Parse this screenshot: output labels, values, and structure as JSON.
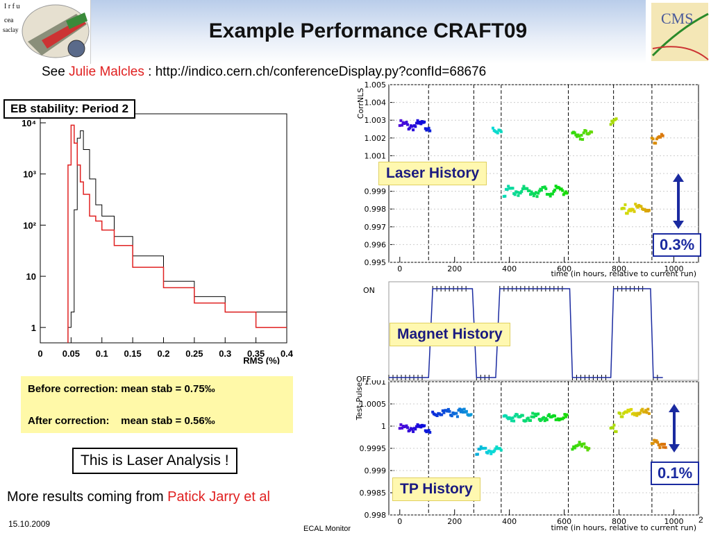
{
  "header": {
    "title": "Example Performance CRAFT09",
    "subtitle_prefix": "See ",
    "subtitle_author": "Julie Malcles",
    "subtitle_suffix": " : http://indico.cern.ch/conferenceDisplay.py?confId=68676"
  },
  "logos": {
    "left": "irfu cea saclay",
    "right": "CMS"
  },
  "left_panel": {
    "label": "EB stability: Period 2",
    "correction_before": "Before correction: mean stab = 0.75‰",
    "correction_after": "After correction:    mean stab = 0.56‰",
    "laser_analysis": "This is Laser Analysis !",
    "more_results_prefix": "More results coming from ",
    "more_results_author": "Patick Jarry et al"
  },
  "right_panel": {
    "laser_label": "Laser History",
    "magnet_label": "Magnet History",
    "tp_label": "TP History",
    "laser_pct": "0.3%",
    "tp_pct": "0.1%",
    "magnet_on": "ON",
    "magnet_off": "OFF"
  },
  "footer": {
    "date": "15.10.2009",
    "center": "ECAL Monitor",
    "page": "2"
  },
  "colors": {
    "red_hist": "#e02020",
    "black_hist": "#000000",
    "accent_box": "#1a2aa0",
    "label_bg": "#fff8b0"
  },
  "chart_data": [
    {
      "type": "histogram",
      "xlabel": "RMS (%)",
      "ylabel": "",
      "yscale": "log",
      "xlim": [
        0,
        0.4
      ],
      "ylim": [
        0.5,
        15000
      ],
      "xticks": [
        "0",
        "0.05",
        "0.1",
        "0.15",
        "0.2",
        "0.25",
        "0.3",
        "0.35",
        "0.4"
      ],
      "yticks": [
        "1",
        "10",
        "10²",
        "10³",
        "10⁴"
      ],
      "x": [
        0.045,
        0.05,
        0.055,
        0.06,
        0.065,
        0.07,
        0.08,
        0.09,
        0.1,
        0.12,
        0.15,
        0.2,
        0.25,
        0.3,
        0.35,
        0.4
      ],
      "series": [
        {
          "name": "before correction",
          "color": "#000000",
          "values": [
            1,
            2,
            200,
            5000,
            7000,
            3000,
            800,
            250,
            150,
            60,
            25,
            8,
            4,
            2,
            2,
            1
          ]
        },
        {
          "name": "after correction",
          "color": "#e02020",
          "values": [
            1500,
            9000,
            4000,
            1500,
            700,
            400,
            150,
            120,
            80,
            40,
            15,
            6,
            3,
            2,
            1,
            1
          ]
        }
      ]
    },
    {
      "type": "scatter",
      "xlabel": "time (in hours, relative to current run)",
      "ylabel": "CorrNLS",
      "xlim": [
        -40,
        1090
      ],
      "ylim": [
        0.995,
        1.005
      ],
      "xticks": [
        "0",
        "200",
        "400",
        "600",
        "800",
        "1000"
      ],
      "yticks": [
        "0.995",
        "0.996",
        "0.997",
        "0.998",
        "0.999",
        "1",
        "1.001",
        "1.002",
        "1.003",
        "1.004",
        "1.005"
      ],
      "dashed_x": [
        105,
        270,
        370,
        615,
        780,
        920
      ],
      "clusters": [
        {
          "x_from": 0,
          "x_to": 110,
          "y": 1.0027
        },
        {
          "x_from": 340,
          "x_to": 370,
          "y": 1.0025
        },
        {
          "x_from": 380,
          "x_to": 610,
          "y": 0.999
        },
        {
          "x_from": 630,
          "x_to": 700,
          "y": 1.0022
        },
        {
          "x_from": 770,
          "x_to": 790,
          "y": 1.003
        },
        {
          "x_from": 810,
          "x_to": 910,
          "y": 0.998
        },
        {
          "x_from": 920,
          "x_to": 960,
          "y": 1.002
        }
      ]
    },
    {
      "type": "line",
      "ylabel": "",
      "ylim": [
        "OFF",
        "ON"
      ],
      "xlim": [
        -40,
        1090
      ],
      "segments": [
        {
          "x": [
            -40,
            105
          ],
          "state": "OFF"
        },
        {
          "x": [
            120,
            265
          ],
          "state": "ON"
        },
        {
          "x": [
            280,
            350
          ],
          "state": "OFF"
        },
        {
          "x": [
            365,
            620
          ],
          "state": "ON"
        },
        {
          "x": [
            630,
            770
          ],
          "state": "OFF"
        },
        {
          "x": [
            780,
            915
          ],
          "state": "ON"
        },
        {
          "x": [
            925,
            960
          ],
          "state": "OFF"
        }
      ]
    },
    {
      "type": "scatter",
      "xlabel": "time (in hours, relative to current run)",
      "ylabel": "Test-Pulse",
      "xlim": [
        -40,
        1090
      ],
      "ylim": [
        0.998,
        1.001
      ],
      "xticks": [
        "0",
        "200",
        "400",
        "600",
        "800",
        "1000"
      ],
      "yticks": [
        "0.998",
        "0.9985",
        "0.999",
        "0.9995",
        "1",
        "1.0005",
        "1.001"
      ],
      "dashed_x": [
        105,
        270,
        370,
        615,
        780,
        920
      ],
      "clusters": [
        {
          "x_from": 0,
          "x_to": 110,
          "y": 0.99995
        },
        {
          "x_from": 120,
          "x_to": 260,
          "y": 1.0003
        },
        {
          "x_from": 280,
          "x_to": 370,
          "y": 0.99945
        },
        {
          "x_from": 380,
          "x_to": 610,
          "y": 1.0002
        },
        {
          "x_from": 630,
          "x_to": 690,
          "y": 0.99955
        },
        {
          "x_from": 770,
          "x_to": 790,
          "y": 0.99995
        },
        {
          "x_from": 800,
          "x_to": 910,
          "y": 1.0003
        },
        {
          "x_from": 920,
          "x_to": 970,
          "y": 0.9996
        }
      ]
    }
  ]
}
